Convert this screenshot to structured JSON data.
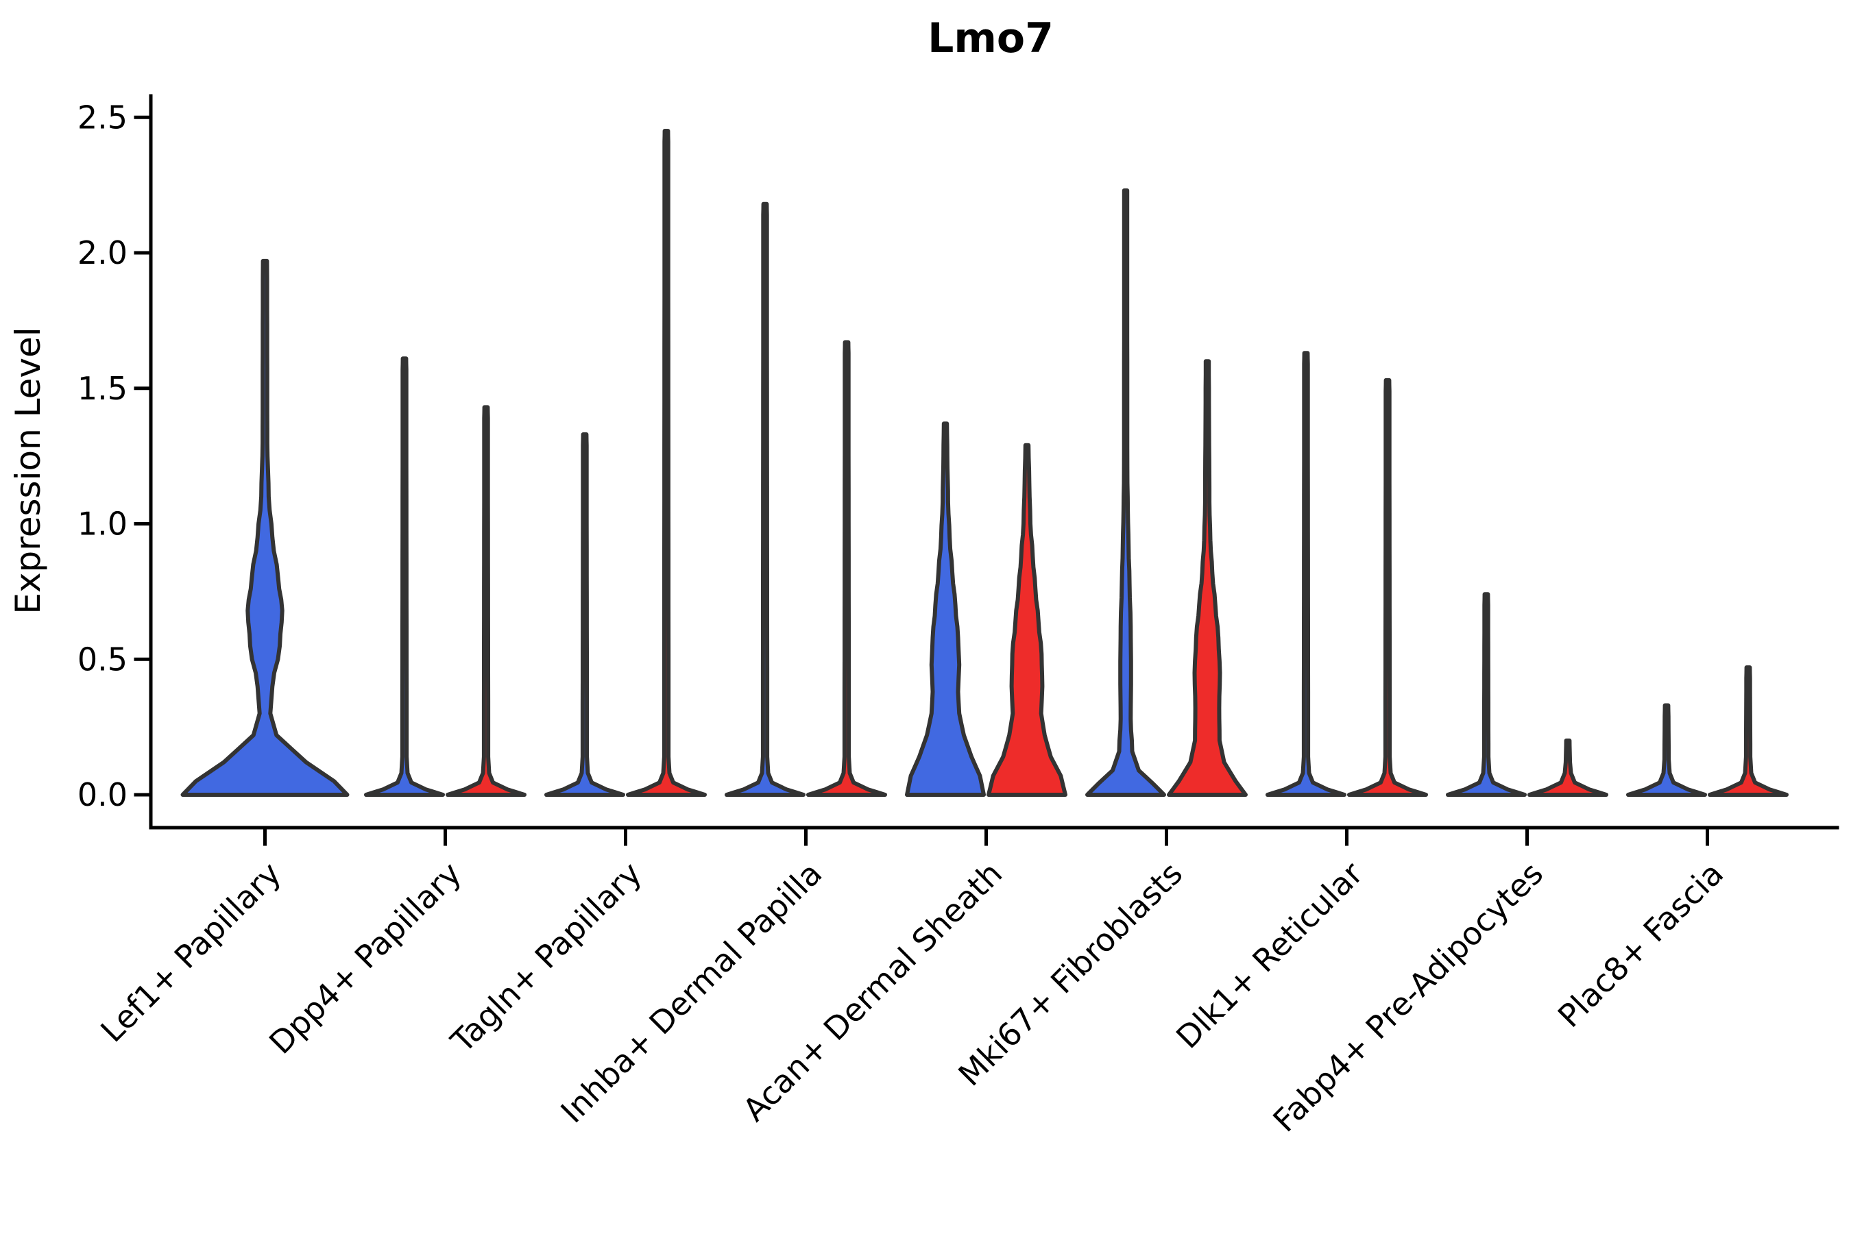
{
  "chart_data": {
    "type": "violin",
    "title": "Lmo7",
    "ylabel": "Expression Level",
    "xlabel": "",
    "ylim": [
      0,
      2.5
    ],
    "yticks": [
      0,
      0.5,
      1.0,
      1.5,
      2.0,
      2.5
    ],
    "ytick_labels": [
      "0.0",
      "0.5",
      "1.0",
      "1.5",
      "2.0",
      "2.5"
    ],
    "grid": false,
    "legend_position": "none",
    "categories": [
      "Lef1+ Papillary",
      "Dpp4+ Papillary",
      "Tagln+ Papillary",
      "Inhba+ Dermal Papilla",
      "Acan+ Dermal Sheath",
      "Mki67+ Fibroblasts",
      "Dlk1+ Reticular",
      "Fabp4+ Pre-Adipocytes",
      "Plac8+ Fascia"
    ],
    "series": [
      {
        "name": "blue",
        "color": "#4169E1",
        "max_values": [
          1.97,
          1.61,
          1.33,
          2.18,
          1.37,
          2.23,
          1.63,
          0.74,
          0.33
        ]
      },
      {
        "name": "red",
        "color": "#EE2C2A",
        "max_values": [
          null,
          1.43,
          2.45,
          1.67,
          1.29,
          1.6,
          1.53,
          0.2,
          0.47
        ]
      }
    ],
    "outline_color": "#333333",
    "axis_color": "#000000",
    "violins": [
      {
        "cat": 0,
        "series": "blue",
        "slot": "full",
        "max": 1.97,
        "profile": [
          [
            0,
            1.0
          ],
          [
            0.05,
            0.84
          ],
          [
            0.12,
            0.5
          ],
          [
            0.22,
            0.14
          ],
          [
            0.3,
            0.065
          ],
          [
            0.4,
            0.09
          ],
          [
            0.55,
            0.18
          ],
          [
            0.68,
            0.21
          ],
          [
            0.8,
            0.16
          ],
          [
            0.95,
            0.09
          ],
          [
            1.1,
            0.045
          ],
          [
            1.3,
            0.028
          ],
          [
            1.9,
            0.026
          ],
          [
            1.97,
            0.024
          ]
        ]
      },
      {
        "cat": 1,
        "series": "blue",
        "slot": "left",
        "max": 1.61,
        "profile": [
          [
            0,
            1.0
          ],
          [
            0.02,
            0.55
          ],
          [
            0.045,
            0.18
          ],
          [
            0.08,
            0.08
          ],
          [
            0.14,
            0.055
          ],
          [
            1.57,
            0.048
          ],
          [
            1.61,
            0.042
          ]
        ]
      },
      {
        "cat": 1,
        "series": "red",
        "slot": "right",
        "max": 1.43,
        "profile": [
          [
            0,
            1.0
          ],
          [
            0.02,
            0.55
          ],
          [
            0.045,
            0.18
          ],
          [
            0.08,
            0.08
          ],
          [
            0.14,
            0.055
          ],
          [
            1.39,
            0.048
          ],
          [
            1.43,
            0.042
          ]
        ]
      },
      {
        "cat": 2,
        "series": "blue",
        "slot": "left",
        "max": 1.33,
        "profile": [
          [
            0,
            1.0
          ],
          [
            0.02,
            0.55
          ],
          [
            0.045,
            0.18
          ],
          [
            0.08,
            0.08
          ],
          [
            0.14,
            0.055
          ],
          [
            1.29,
            0.048
          ],
          [
            1.33,
            0.042
          ]
        ]
      },
      {
        "cat": 2,
        "series": "red",
        "slot": "right",
        "max": 2.45,
        "profile": [
          [
            0,
            1.0
          ],
          [
            0.02,
            0.55
          ],
          [
            0.045,
            0.18
          ],
          [
            0.08,
            0.08
          ],
          [
            0.14,
            0.055
          ],
          [
            2.41,
            0.048
          ],
          [
            2.45,
            0.042
          ]
        ]
      },
      {
        "cat": 3,
        "series": "blue",
        "slot": "left",
        "max": 2.18,
        "profile": [
          [
            0,
            1.0
          ],
          [
            0.02,
            0.55
          ],
          [
            0.045,
            0.18
          ],
          [
            0.08,
            0.08
          ],
          [
            0.14,
            0.055
          ],
          [
            2.14,
            0.048
          ],
          [
            2.18,
            0.042
          ]
        ]
      },
      {
        "cat": 3,
        "series": "red",
        "slot": "right",
        "max": 1.67,
        "profile": [
          [
            0,
            1.0
          ],
          [
            0.02,
            0.55
          ],
          [
            0.045,
            0.18
          ],
          [
            0.08,
            0.08
          ],
          [
            0.14,
            0.055
          ],
          [
            1.63,
            0.048
          ],
          [
            1.67,
            0.042
          ]
        ]
      },
      {
        "cat": 4,
        "series": "blue",
        "slot": "left",
        "max": 1.37,
        "profile": [
          [
            0,
            1.0
          ],
          [
            0.07,
            0.9
          ],
          [
            0.14,
            0.68
          ],
          [
            0.22,
            0.48
          ],
          [
            0.3,
            0.36
          ],
          [
            0.38,
            0.33
          ],
          [
            0.48,
            0.36
          ],
          [
            0.58,
            0.33
          ],
          [
            0.7,
            0.26
          ],
          [
            0.82,
            0.18
          ],
          [
            0.95,
            0.11
          ],
          [
            1.08,
            0.07
          ],
          [
            1.25,
            0.05
          ],
          [
            1.37,
            0.04
          ]
        ]
      },
      {
        "cat": 4,
        "series": "red",
        "slot": "right",
        "max": 1.29,
        "profile": [
          [
            0,
            1.0
          ],
          [
            0.07,
            0.88
          ],
          [
            0.14,
            0.62
          ],
          [
            0.22,
            0.46
          ],
          [
            0.3,
            0.37
          ],
          [
            0.4,
            0.4
          ],
          [
            0.52,
            0.38
          ],
          [
            0.64,
            0.3
          ],
          [
            0.76,
            0.22
          ],
          [
            0.88,
            0.15
          ],
          [
            1.0,
            0.09
          ],
          [
            1.15,
            0.06
          ],
          [
            1.29,
            0.04
          ]
        ]
      },
      {
        "cat": 5,
        "series": "blue",
        "slot": "left",
        "max": 2.23,
        "profile": [
          [
            0,
            1.0
          ],
          [
            0.04,
            0.72
          ],
          [
            0.09,
            0.34
          ],
          [
            0.16,
            0.17
          ],
          [
            0.28,
            0.13
          ],
          [
            0.45,
            0.14
          ],
          [
            0.62,
            0.13
          ],
          [
            0.78,
            0.1
          ],
          [
            0.92,
            0.075
          ],
          [
            1.05,
            0.055
          ],
          [
            1.2,
            0.042
          ],
          [
            2.15,
            0.038
          ],
          [
            2.23,
            0.032
          ]
        ]
      },
      {
        "cat": 5,
        "series": "red",
        "slot": "right",
        "max": 1.6,
        "profile": [
          [
            0,
            1.0
          ],
          [
            0.05,
            0.74
          ],
          [
            0.12,
            0.44
          ],
          [
            0.2,
            0.32
          ],
          [
            0.32,
            0.31
          ],
          [
            0.45,
            0.33
          ],
          [
            0.58,
            0.29
          ],
          [
            0.7,
            0.21
          ],
          [
            0.82,
            0.13
          ],
          [
            0.94,
            0.08
          ],
          [
            1.08,
            0.055
          ],
          [
            1.5,
            0.042
          ],
          [
            1.6,
            0.034
          ]
        ]
      },
      {
        "cat": 6,
        "series": "blue",
        "slot": "left",
        "max": 1.63,
        "profile": [
          [
            0,
            1.0
          ],
          [
            0.02,
            0.55
          ],
          [
            0.045,
            0.18
          ],
          [
            0.08,
            0.08
          ],
          [
            0.14,
            0.055
          ],
          [
            1.59,
            0.048
          ],
          [
            1.63,
            0.042
          ]
        ]
      },
      {
        "cat": 6,
        "series": "red",
        "slot": "right",
        "max": 1.53,
        "profile": [
          [
            0,
            1.0
          ],
          [
            0.02,
            0.55
          ],
          [
            0.045,
            0.18
          ],
          [
            0.08,
            0.08
          ],
          [
            0.14,
            0.055
          ],
          [
            1.49,
            0.048
          ],
          [
            1.53,
            0.042
          ]
        ]
      },
      {
        "cat": 7,
        "series": "blue",
        "slot": "left",
        "max": 0.74,
        "profile": [
          [
            0,
            1.0
          ],
          [
            0.02,
            0.55
          ],
          [
            0.045,
            0.18
          ],
          [
            0.08,
            0.08
          ],
          [
            0.14,
            0.055
          ],
          [
            0.7,
            0.048
          ],
          [
            0.74,
            0.042
          ]
        ]
      },
      {
        "cat": 7,
        "series": "red",
        "slot": "right",
        "max": 0.2,
        "profile": [
          [
            0,
            1.0
          ],
          [
            0.02,
            0.55
          ],
          [
            0.045,
            0.18
          ],
          [
            0.08,
            0.08
          ],
          [
            0.12,
            0.055
          ],
          [
            0.16,
            0.048
          ],
          [
            0.2,
            0.042
          ]
        ]
      },
      {
        "cat": 8,
        "series": "blue",
        "slot": "left",
        "max": 0.33,
        "profile": [
          [
            0,
            1.0
          ],
          [
            0.02,
            0.55
          ],
          [
            0.045,
            0.18
          ],
          [
            0.08,
            0.08
          ],
          [
            0.13,
            0.055
          ],
          [
            0.29,
            0.048
          ],
          [
            0.33,
            0.042
          ]
        ]
      },
      {
        "cat": 8,
        "series": "red",
        "slot": "right",
        "max": 0.47,
        "profile": [
          [
            0,
            1.0
          ],
          [
            0.02,
            0.55
          ],
          [
            0.045,
            0.18
          ],
          [
            0.08,
            0.08
          ],
          [
            0.14,
            0.055
          ],
          [
            0.43,
            0.048
          ],
          [
            0.47,
            0.042
          ]
        ]
      }
    ]
  }
}
